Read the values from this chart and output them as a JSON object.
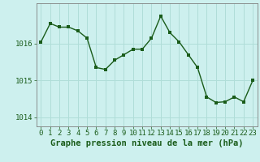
{
  "x": [
    0,
    1,
    2,
    3,
    4,
    5,
    6,
    7,
    8,
    9,
    10,
    11,
    12,
    13,
    14,
    15,
    16,
    17,
    18,
    19,
    20,
    21,
    22,
    23
  ],
  "y": [
    1016.05,
    1016.55,
    1016.45,
    1016.45,
    1016.35,
    1016.15,
    1015.35,
    1015.3,
    1015.55,
    1015.7,
    1015.85,
    1015.85,
    1016.15,
    1016.75,
    1016.3,
    1016.05,
    1015.7,
    1015.35,
    1014.55,
    1014.4,
    1014.42,
    1014.55,
    1014.42,
    1015.0
  ],
  "line_color": "#1a5c1a",
  "marker_color": "#1a5c1a",
  "bg_color": "#cdf0ee",
  "grid_color": "#b0ddd8",
  "title": "Graphe pression niveau de la mer (hPa)",
  "ylim": [
    1013.75,
    1017.1
  ],
  "xlim": [
    -0.5,
    23.5
  ],
  "yticks": [
    1014,
    1015,
    1016
  ],
  "xtick_labels": [
    "0",
    "1",
    "2",
    "3",
    "4",
    "5",
    "6",
    "7",
    "8",
    "9",
    "10",
    "11",
    "12",
    "13",
    "14",
    "15",
    "16",
    "17",
    "18",
    "19",
    "20",
    "21",
    "22",
    "23"
  ],
  "marker_size": 2.5,
  "line_width": 1.0,
  "title_fontsize": 7.5,
  "tick_fontsize": 6.5
}
